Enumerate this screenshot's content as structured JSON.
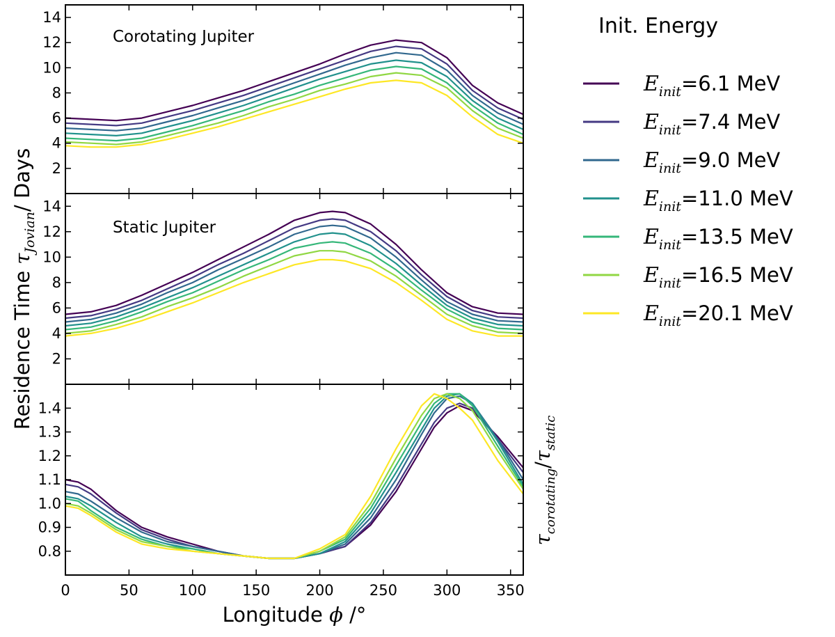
{
  "chart_data": [
    {
      "type": "line",
      "panel": "top",
      "title": "Corotating Jupiter",
      "xlim": [
        0,
        360
      ],
      "ylim": [
        0,
        15
      ],
      "yticks": [
        "2",
        "4",
        "6",
        "8",
        "10",
        "12",
        "14"
      ],
      "x": [
        0,
        20,
        40,
        60,
        80,
        100,
        120,
        140,
        160,
        180,
        200,
        220,
        240,
        260,
        280,
        300,
        320,
        340,
        360
      ],
      "series": [
        {
          "name": "E_init=6.1 MeV",
          "values": [
            6.0,
            5.9,
            5.8,
            6.0,
            6.5,
            7.0,
            7.6,
            8.2,
            8.9,
            9.6,
            10.3,
            11.1,
            11.8,
            12.2,
            12.0,
            10.8,
            8.6,
            7.2,
            6.3
          ]
        },
        {
          "name": "E_init=7.4 MeV",
          "values": [
            5.6,
            5.5,
            5.4,
            5.6,
            6.1,
            6.6,
            7.2,
            7.8,
            8.5,
            9.2,
            9.9,
            10.6,
            11.3,
            11.7,
            11.5,
            10.3,
            8.2,
            6.8,
            5.9
          ]
        },
        {
          "name": "E_init=9.0 MeV",
          "values": [
            5.2,
            5.1,
            5.0,
            5.2,
            5.7,
            6.2,
            6.8,
            7.4,
            8.1,
            8.8,
            9.5,
            10.2,
            10.8,
            11.2,
            11.0,
            9.8,
            7.8,
            6.4,
            5.5
          ]
        },
        {
          "name": "E_init=11.0 MeV",
          "values": [
            4.8,
            4.7,
            4.6,
            4.8,
            5.3,
            5.8,
            6.4,
            7.0,
            7.7,
            8.4,
            9.1,
            9.7,
            10.3,
            10.6,
            10.4,
            9.3,
            7.4,
            6.0,
            5.1
          ]
        },
        {
          "name": "E_init=13.5 MeV",
          "values": [
            4.4,
            4.3,
            4.2,
            4.4,
            4.9,
            5.4,
            6.0,
            6.6,
            7.3,
            7.9,
            8.6,
            9.2,
            9.8,
            10.1,
            9.9,
            8.8,
            7.0,
            5.6,
            4.7
          ]
        },
        {
          "name": "E_init=16.5 MeV",
          "values": [
            4.1,
            4.0,
            3.9,
            4.1,
            4.6,
            5.1,
            5.6,
            6.2,
            6.9,
            7.5,
            8.2,
            8.7,
            9.3,
            9.6,
            9.4,
            8.4,
            6.6,
            5.2,
            4.4
          ]
        },
        {
          "name": "E_init=20.1 MeV",
          "values": [
            3.8,
            3.7,
            3.7,
            3.9,
            4.3,
            4.8,
            5.3,
            5.9,
            6.5,
            7.1,
            7.7,
            8.3,
            8.8,
            9.0,
            8.8,
            7.8,
            6.1,
            4.7,
            4.0
          ]
        }
      ]
    },
    {
      "type": "line",
      "panel": "middle",
      "title": "Static Jupiter",
      "xlim": [
        0,
        360
      ],
      "ylim": [
        0,
        15
      ],
      "yticks": [
        "2",
        "4",
        "6",
        "8",
        "10",
        "12",
        "14"
      ],
      "x": [
        0,
        20,
        40,
        60,
        80,
        100,
        120,
        140,
        160,
        180,
        200,
        210,
        220,
        240,
        260,
        280,
        300,
        320,
        340,
        360
      ],
      "series": [
        {
          "name": "E_init=6.1 MeV",
          "values": [
            5.5,
            5.7,
            6.2,
            7.0,
            7.9,
            8.8,
            9.8,
            10.8,
            11.8,
            12.9,
            13.5,
            13.6,
            13.5,
            12.6,
            11.0,
            9.0,
            7.2,
            6.1,
            5.6,
            5.5
          ]
        },
        {
          "name": "E_init=7.4 MeV",
          "values": [
            5.2,
            5.4,
            5.9,
            6.6,
            7.5,
            8.4,
            9.4,
            10.3,
            11.3,
            12.3,
            12.9,
            13.0,
            12.9,
            12.0,
            10.5,
            8.6,
            6.9,
            5.8,
            5.3,
            5.2
          ]
        },
        {
          "name": "E_init=9.0 MeV",
          "values": [
            4.9,
            5.1,
            5.6,
            6.3,
            7.2,
            8.0,
            9.0,
            9.9,
            10.8,
            11.8,
            12.4,
            12.5,
            12.4,
            11.5,
            10.0,
            8.2,
            6.5,
            5.5,
            5.0,
            4.9
          ]
        },
        {
          "name": "E_init=11.0 MeV",
          "values": [
            4.6,
            4.8,
            5.3,
            6.0,
            6.8,
            7.6,
            8.5,
            9.4,
            10.3,
            11.2,
            11.8,
            11.9,
            11.8,
            10.9,
            9.5,
            7.8,
            6.2,
            5.2,
            4.7,
            4.6
          ]
        },
        {
          "name": "E_init=13.5 MeV",
          "values": [
            4.3,
            4.5,
            5.0,
            5.7,
            6.5,
            7.2,
            8.1,
            9.0,
            9.8,
            10.7,
            11.1,
            11.2,
            11.1,
            10.3,
            9.0,
            7.4,
            5.9,
            4.9,
            4.4,
            4.3
          ]
        },
        {
          "name": "E_init=16.5 MeV",
          "values": [
            4.0,
            4.2,
            4.7,
            5.3,
            6.1,
            6.8,
            7.6,
            8.5,
            9.3,
            10.1,
            10.5,
            10.5,
            10.4,
            9.7,
            8.5,
            7.0,
            5.5,
            4.6,
            4.1,
            4.0
          ]
        },
        {
          "name": "E_init=20.1 MeV",
          "values": [
            3.8,
            4.0,
            4.4,
            5.0,
            5.7,
            6.4,
            7.2,
            8.0,
            8.7,
            9.4,
            9.8,
            9.8,
            9.7,
            9.1,
            8.0,
            6.6,
            5.1,
            4.2,
            3.8,
            3.8
          ]
        }
      ]
    },
    {
      "type": "line",
      "panel": "bottom",
      "xlim": [
        0,
        360
      ],
      "ylim": [
        0.7,
        1.5
      ],
      "yticks": [
        "0.8",
        "0.9",
        "1.0",
        "1.1",
        "1.2",
        "1.3",
        "1.4"
      ],
      "xticks": [
        "0",
        "50",
        "100",
        "150",
        "200",
        "250",
        "300",
        "350"
      ],
      "x": [
        0,
        10,
        20,
        40,
        60,
        80,
        100,
        120,
        140,
        160,
        180,
        200,
        220,
        240,
        260,
        280,
        290,
        300,
        310,
        320,
        340,
        360
      ],
      "series": [
        {
          "name": "E_init=6.1 MeV",
          "values": [
            1.1,
            1.09,
            1.06,
            0.97,
            0.9,
            0.86,
            0.83,
            0.8,
            0.78,
            0.77,
            0.77,
            0.79,
            0.82,
            0.91,
            1.05,
            1.23,
            1.32,
            1.38,
            1.41,
            1.39,
            1.28,
            1.15
          ]
        },
        {
          "name": "E_init=7.4 MeV",
          "values": [
            1.08,
            1.07,
            1.04,
            0.96,
            0.89,
            0.85,
            0.82,
            0.8,
            0.78,
            0.77,
            0.77,
            0.79,
            0.82,
            0.92,
            1.07,
            1.25,
            1.34,
            1.4,
            1.42,
            1.4,
            1.27,
            1.13
          ]
        },
        {
          "name": "E_init=9.0 MeV",
          "values": [
            1.05,
            1.04,
            1.01,
            0.94,
            0.88,
            0.84,
            0.82,
            0.8,
            0.78,
            0.77,
            0.77,
            0.79,
            0.83,
            0.94,
            1.1,
            1.29,
            1.38,
            1.44,
            1.45,
            1.42,
            1.27,
            1.1
          ]
        },
        {
          "name": "E_init=11.0 MeV",
          "values": [
            1.03,
            1.02,
            0.99,
            0.92,
            0.86,
            0.83,
            0.81,
            0.79,
            0.78,
            0.77,
            0.77,
            0.79,
            0.84,
            0.96,
            1.13,
            1.31,
            1.4,
            1.45,
            1.46,
            1.42,
            1.26,
            1.08
          ]
        },
        {
          "name": "E_init=13.5 MeV",
          "values": [
            1.02,
            1.01,
            0.97,
            0.9,
            0.85,
            0.82,
            0.81,
            0.79,
            0.78,
            0.77,
            0.77,
            0.8,
            0.85,
            0.98,
            1.16,
            1.34,
            1.42,
            1.46,
            1.46,
            1.41,
            1.24,
            1.07
          ]
        },
        {
          "name": "E_init=16.5 MeV",
          "values": [
            1.0,
            0.99,
            0.96,
            0.89,
            0.84,
            0.82,
            0.8,
            0.79,
            0.78,
            0.77,
            0.77,
            0.8,
            0.86,
            1.0,
            1.19,
            1.37,
            1.44,
            1.46,
            1.44,
            1.39,
            1.22,
            1.06
          ]
        },
        {
          "name": "E_init=20.1 MeV",
          "values": [
            0.99,
            0.98,
            0.95,
            0.88,
            0.83,
            0.81,
            0.8,
            0.79,
            0.78,
            0.77,
            0.77,
            0.81,
            0.87,
            1.03,
            1.23,
            1.41,
            1.46,
            1.44,
            1.4,
            1.35,
            1.18,
            1.04
          ]
        }
      ]
    }
  ],
  "axes": {
    "shared_ylabel_text": "Residence Time ",
    "shared_ylabel_math": "τ",
    "shared_ylabel_sub": "Jovian",
    "shared_ylabel_unit": "/ Days",
    "bottom_ylabel_num": "τ",
    "bottom_ylabel_num_sub": "corotating",
    "bottom_ylabel_sep": "/",
    "bottom_ylabel_den": "τ",
    "bottom_ylabel_den_sub": "static",
    "xlabel_text": "Longitude ",
    "xlabel_math": "ϕ",
    "xlabel_unit": " /°"
  },
  "legend": {
    "title": "Init. Energy",
    "var": "E",
    "sub": "init",
    "entries": [
      {
        "value": "=6.1 MeV",
        "color": "#440154"
      },
      {
        "value": "=7.4 MeV",
        "color": "#443983"
      },
      {
        "value": "=9.0 MeV",
        "color": "#31688e"
      },
      {
        "value": "=11.0 MeV",
        "color": "#21918c"
      },
      {
        "value": "=13.5 MeV",
        "color": "#35b779"
      },
      {
        "value": "=16.5 MeV",
        "color": "#90d743"
      },
      {
        "value": "=20.1 MeV",
        "color": "#fde725"
      }
    ]
  }
}
